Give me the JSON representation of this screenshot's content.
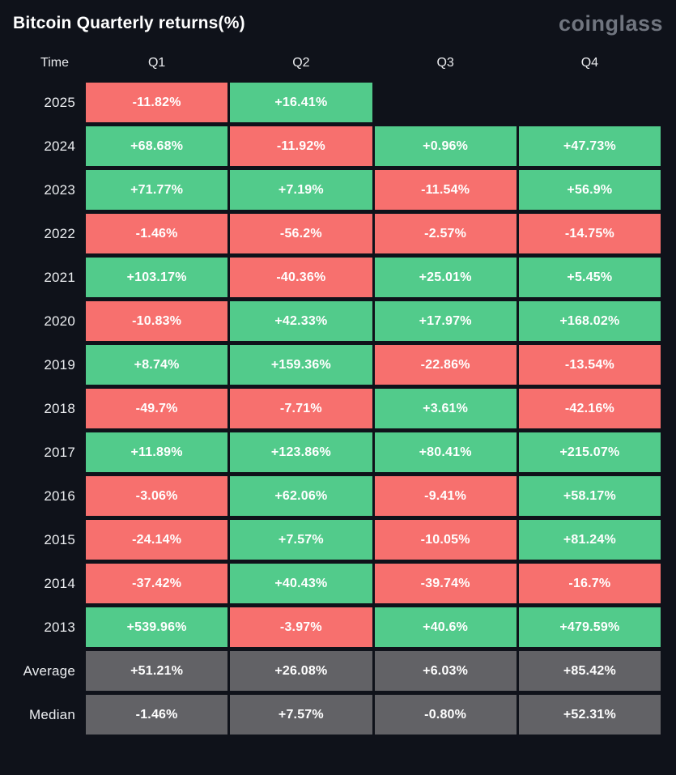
{
  "header": {
    "title": "Bitcoin Quarterly returns(%)",
    "logo": "coinglass"
  },
  "colors": {
    "green": "#52cb8b",
    "red": "#f7706e",
    "gray": "#626266",
    "background": "#0f121a",
    "cell_text": "#ffffff",
    "title_text": "#ffffff",
    "logo_text": "#70757f"
  },
  "table": {
    "columns": [
      "Time",
      "Q1",
      "Q2",
      "Q3",
      "Q4"
    ],
    "rows": [
      {
        "label": "2025",
        "cells": [
          {
            "text": "-11.82%",
            "tone": "red"
          },
          {
            "text": "+16.41%",
            "tone": "green"
          },
          {
            "text": "",
            "tone": "empty"
          },
          {
            "text": "",
            "tone": "empty"
          }
        ]
      },
      {
        "label": "2024",
        "cells": [
          {
            "text": "+68.68%",
            "tone": "green"
          },
          {
            "text": "-11.92%",
            "tone": "red"
          },
          {
            "text": "+0.96%",
            "tone": "green"
          },
          {
            "text": "+47.73%",
            "tone": "green"
          }
        ]
      },
      {
        "label": "2023",
        "cells": [
          {
            "text": "+71.77%",
            "tone": "green"
          },
          {
            "text": "+7.19%",
            "tone": "green"
          },
          {
            "text": "-11.54%",
            "tone": "red"
          },
          {
            "text": "+56.9%",
            "tone": "green"
          }
        ]
      },
      {
        "label": "2022",
        "cells": [
          {
            "text": "-1.46%",
            "tone": "red"
          },
          {
            "text": "-56.2%",
            "tone": "red"
          },
          {
            "text": "-2.57%",
            "tone": "red"
          },
          {
            "text": "-14.75%",
            "tone": "red"
          }
        ]
      },
      {
        "label": "2021",
        "cells": [
          {
            "text": "+103.17%",
            "tone": "green"
          },
          {
            "text": "-40.36%",
            "tone": "red"
          },
          {
            "text": "+25.01%",
            "tone": "green"
          },
          {
            "text": "+5.45%",
            "tone": "green"
          }
        ]
      },
      {
        "label": "2020",
        "cells": [
          {
            "text": "-10.83%",
            "tone": "red"
          },
          {
            "text": "+42.33%",
            "tone": "green"
          },
          {
            "text": "+17.97%",
            "tone": "green"
          },
          {
            "text": "+168.02%",
            "tone": "green"
          }
        ]
      },
      {
        "label": "2019",
        "cells": [
          {
            "text": "+8.74%",
            "tone": "green"
          },
          {
            "text": "+159.36%",
            "tone": "green"
          },
          {
            "text": "-22.86%",
            "tone": "red"
          },
          {
            "text": "-13.54%",
            "tone": "red"
          }
        ]
      },
      {
        "label": "2018",
        "cells": [
          {
            "text": "-49.7%",
            "tone": "red"
          },
          {
            "text": "-7.71%",
            "tone": "red"
          },
          {
            "text": "+3.61%",
            "tone": "green"
          },
          {
            "text": "-42.16%",
            "tone": "red"
          }
        ]
      },
      {
        "label": "2017",
        "cells": [
          {
            "text": "+11.89%",
            "tone": "green"
          },
          {
            "text": "+123.86%",
            "tone": "green"
          },
          {
            "text": "+80.41%",
            "tone": "green"
          },
          {
            "text": "+215.07%",
            "tone": "green"
          }
        ]
      },
      {
        "label": "2016",
        "cells": [
          {
            "text": "-3.06%",
            "tone": "red"
          },
          {
            "text": "+62.06%",
            "tone": "green"
          },
          {
            "text": "-9.41%",
            "tone": "red"
          },
          {
            "text": "+58.17%",
            "tone": "green"
          }
        ]
      },
      {
        "label": "2015",
        "cells": [
          {
            "text": "-24.14%",
            "tone": "red"
          },
          {
            "text": "+7.57%",
            "tone": "green"
          },
          {
            "text": "-10.05%",
            "tone": "red"
          },
          {
            "text": "+81.24%",
            "tone": "green"
          }
        ]
      },
      {
        "label": "2014",
        "cells": [
          {
            "text": "-37.42%",
            "tone": "red"
          },
          {
            "text": "+40.43%",
            "tone": "green"
          },
          {
            "text": "-39.74%",
            "tone": "red"
          },
          {
            "text": "-16.7%",
            "tone": "red"
          }
        ]
      },
      {
        "label": "2013",
        "cells": [
          {
            "text": "+539.96%",
            "tone": "green"
          },
          {
            "text": "-3.97%",
            "tone": "red"
          },
          {
            "text": "+40.6%",
            "tone": "green"
          },
          {
            "text": "+479.59%",
            "tone": "green"
          }
        ]
      },
      {
        "label": "Average",
        "cells": [
          {
            "text": "+51.21%",
            "tone": "gray"
          },
          {
            "text": "+26.08%",
            "tone": "gray"
          },
          {
            "text": "+6.03%",
            "tone": "gray"
          },
          {
            "text": "+85.42%",
            "tone": "gray"
          }
        ]
      },
      {
        "label": "Median",
        "cells": [
          {
            "text": "-1.46%",
            "tone": "gray"
          },
          {
            "text": "+7.57%",
            "tone": "gray"
          },
          {
            "text": "-0.80%",
            "tone": "gray"
          },
          {
            "text": "+52.31%",
            "tone": "gray"
          }
        ]
      }
    ]
  },
  "chart_data": {
    "type": "heatmap",
    "title": "Bitcoin Quarterly returns(%)",
    "source": "coinglass",
    "columns": [
      "Q1",
      "Q2",
      "Q3",
      "Q4"
    ],
    "rows": [
      "2025",
      "2024",
      "2023",
      "2022",
      "2021",
      "2020",
      "2019",
      "2018",
      "2017",
      "2016",
      "2015",
      "2014",
      "2013",
      "Average",
      "Median"
    ],
    "values": [
      [
        -11.82,
        16.41,
        null,
        null
      ],
      [
        68.68,
        -11.92,
        0.96,
        47.73
      ],
      [
        71.77,
        7.19,
        -11.54,
        56.9
      ],
      [
        -1.46,
        -56.2,
        -2.57,
        -14.75
      ],
      [
        103.17,
        -40.36,
        25.01,
        5.45
      ],
      [
        -10.83,
        42.33,
        17.97,
        168.02
      ],
      [
        8.74,
        159.36,
        -22.86,
        -13.54
      ],
      [
        -49.7,
        -7.71,
        3.61,
        -42.16
      ],
      [
        11.89,
        123.86,
        80.41,
        215.07
      ],
      [
        -3.06,
        62.06,
        -9.41,
        58.17
      ],
      [
        -24.14,
        7.57,
        -10.05,
        81.24
      ],
      [
        -37.42,
        40.43,
        -39.74,
        -16.7
      ],
      [
        539.96,
        -3.97,
        40.6,
        479.59
      ],
      [
        51.21,
        26.08,
        6.03,
        85.42
      ],
      [
        -1.46,
        7.57,
        -0.8,
        52.31
      ]
    ],
    "unit": "%",
    "color_rule": "green = positive return, red = negative return, gray = summary rows (Average, Median)",
    "legend_position": "none",
    "grid": false
  }
}
